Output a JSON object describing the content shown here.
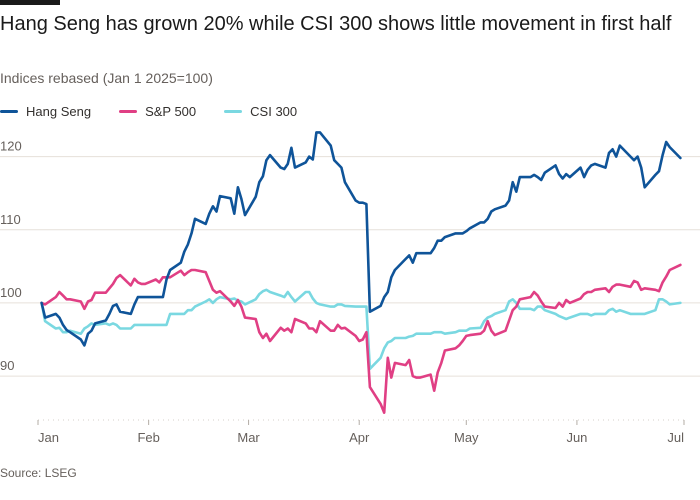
{
  "header": {
    "title": "Hang Seng has grown 20% while CSI 300 shows little movement in first half",
    "subtitle": "Indices rebased (Jan 1 2025=100)"
  },
  "footer": {
    "source": "Source: LSEG"
  },
  "chart_data": {
    "type": "line",
    "title": "Hang Seng has grown 20% while CSI 300 shows little movement in first half",
    "subtitle": "Indices rebased (Jan 1 2025=100)",
    "xlabel": "",
    "ylabel": "",
    "legend_position": "top-left",
    "grid": true,
    "ylim": [
      84,
      125
    ],
    "yticks": [
      90,
      100,
      110,
      120
    ],
    "xticks": [
      "Jan",
      "Feb",
      "Mar",
      "Apr",
      "May",
      "Jun",
      "Jul"
    ],
    "x": [
      "2025-01-02",
      "2025-01-03",
      "2025-01-06",
      "2025-01-07",
      "2025-01-08",
      "2025-01-09",
      "2025-01-10",
      "2025-01-13",
      "2025-01-14",
      "2025-01-15",
      "2025-01-16",
      "2025-01-17",
      "2025-01-20",
      "2025-01-21",
      "2025-01-22",
      "2025-01-23",
      "2025-01-24",
      "2025-01-27",
      "2025-01-28",
      "2025-01-29",
      "2025-01-30",
      "2025-01-31",
      "2025-02-03",
      "2025-02-04",
      "2025-02-05",
      "2025-02-06",
      "2025-02-07",
      "2025-02-10",
      "2025-02-11",
      "2025-02-12",
      "2025-02-13",
      "2025-02-14",
      "2025-02-17",
      "2025-02-18",
      "2025-02-19",
      "2025-02-20",
      "2025-02-21",
      "2025-02-24",
      "2025-02-25",
      "2025-02-26",
      "2025-02-27",
      "2025-02-28",
      "2025-03-03",
      "2025-03-04",
      "2025-03-05",
      "2025-03-06",
      "2025-03-07",
      "2025-03-10",
      "2025-03-11",
      "2025-03-12",
      "2025-03-13",
      "2025-03-14",
      "2025-03-17",
      "2025-03-18",
      "2025-03-19",
      "2025-03-20",
      "2025-03-21",
      "2025-03-24",
      "2025-03-25",
      "2025-03-26",
      "2025-03-27",
      "2025-03-28",
      "2025-03-31",
      "2025-04-01",
      "2025-04-02",
      "2025-04-03",
      "2025-04-04",
      "2025-04-07",
      "2025-04-08",
      "2025-04-09",
      "2025-04-10",
      "2025-04-11",
      "2025-04-14",
      "2025-04-15",
      "2025-04-16",
      "2025-04-17",
      "2025-04-18",
      "2025-04-21",
      "2025-04-22",
      "2025-04-23",
      "2025-04-24",
      "2025-04-25",
      "2025-04-28",
      "2025-04-29",
      "2025-04-30",
      "2025-05-01",
      "2025-05-02",
      "2025-05-05",
      "2025-05-06",
      "2025-05-07",
      "2025-05-08",
      "2025-05-09",
      "2025-05-12",
      "2025-05-13",
      "2025-05-14",
      "2025-05-15",
      "2025-05-16",
      "2025-05-19",
      "2025-05-20",
      "2025-05-21",
      "2025-05-22",
      "2025-05-23",
      "2025-05-26",
      "2025-05-27",
      "2025-05-28",
      "2025-05-29",
      "2025-05-30",
      "2025-06-02",
      "2025-06-03",
      "2025-06-04",
      "2025-06-05",
      "2025-06-06",
      "2025-06-09",
      "2025-06-10",
      "2025-06-11",
      "2025-06-12",
      "2025-06-13",
      "2025-06-16",
      "2025-06-17",
      "2025-06-18",
      "2025-06-19",
      "2025-06-20",
      "2025-06-23",
      "2025-06-24",
      "2025-06-25",
      "2025-06-26",
      "2025-06-27",
      "2025-06-30"
    ],
    "series": [
      {
        "name": "Hang Seng",
        "color": "#0f5499",
        "values": [
          100,
          98,
          98.5,
          98,
          97,
          96.3,
          96,
          95,
          94.2,
          95.8,
          96.2,
          97.2,
          97.6,
          98.5,
          99.6,
          99.8,
          98.8,
          98.5,
          99.8,
          100.8,
          100.8,
          100.8,
          100.8,
          100.8,
          100.8,
          103.2,
          104.5,
          105.5,
          107,
          108,
          109.5,
          111.5,
          110.8,
          112.2,
          113.2,
          112.5,
          114.6,
          114.3,
          112.2,
          115.8,
          114.2,
          112,
          114.5,
          116.5,
          117.3,
          119.5,
          120.2,
          118.5,
          118.3,
          119,
          121.2,
          118.5,
          119.2,
          120,
          119.6,
          123.3,
          123.3,
          121.5,
          119.5,
          119,
          118.5,
          116.5,
          114,
          113.7,
          113.7,
          113.5,
          98.8,
          99.6,
          100.8,
          101.5,
          103.5,
          104.5,
          106,
          106.5,
          105.5,
          106.8,
          106.8,
          106.8,
          107.5,
          108.5,
          108.5,
          109,
          109.5,
          109.5,
          109.5,
          109.8,
          110.2,
          111,
          111,
          111.5,
          112.5,
          112.8,
          113.3,
          114,
          116.5,
          115.2,
          117.2,
          117.2,
          117.5,
          117.2,
          116.8,
          117.8,
          118.8,
          117.6,
          117,
          117.6,
          117.2,
          118.5,
          117.2,
          118.2,
          118.8,
          119,
          118.5,
          120.5,
          121,
          120,
          121.5,
          120,
          119.5,
          120,
          118.5,
          115.8,
          117.5,
          118,
          120.2,
          122,
          121.3,
          119.8
        ]
      },
      {
        "name": "S&P 500",
        "color": "#e03f84",
        "values": [
          100,
          99.8,
          100.8,
          101.5,
          101,
          100.5,
          100.5,
          100.2,
          99.2,
          100.2,
          100.4,
          101.4,
          101.4,
          102,
          102.6,
          103.4,
          103.8,
          102.4,
          103.3,
          102.8,
          102.6,
          102.6,
          103.2,
          102.8,
          103.5,
          103.5,
          103.5,
          104.4,
          103.8,
          104.2,
          104.5,
          104.5,
          104.2,
          103,
          101.8,
          101.4,
          101.6,
          100.2,
          99.6,
          100.4,
          99.5,
          98,
          97.8,
          96,
          95.2,
          95.8,
          94.8,
          96.6,
          96.2,
          96.5,
          96,
          97.8,
          97.2,
          96.5,
          96.5,
          96,
          97.5,
          96.2,
          96.2,
          97,
          96.5,
          96.6,
          95.5,
          94.8,
          95,
          96,
          88.5,
          86.2,
          85,
          92.5,
          89.8,
          91.8,
          91.5,
          92.2,
          90,
          89.8,
          89.8,
          90.2,
          88,
          90.5,
          91.8,
          93.5,
          93.8,
          94.2,
          94.8,
          95.5,
          95.6,
          95.8,
          96.2,
          97.5,
          96.2,
          95.6,
          96.2,
          97.6,
          99,
          99.5,
          100.5,
          100.8,
          101.5,
          101,
          100.2,
          99.5,
          99.3,
          100,
          99.5,
          100.4,
          100,
          100.6,
          101.2,
          101.5,
          101.5,
          101.8,
          102,
          101.5,
          102.2,
          102.5,
          102.5,
          102.2,
          103,
          102.8,
          101.8,
          102,
          101.8,
          101.6,
          102.8,
          103.6,
          104.5,
          105.2
        ]
      },
      {
        "name": "CSI 300",
        "color": "#7ad8e1",
        "values": [
          100,
          97.5,
          96.5,
          96.6,
          96,
          96,
          96.2,
          95.8,
          96.5,
          96.8,
          97.2,
          97,
          97.2,
          97,
          97.2,
          97,
          96.5,
          96.5,
          97,
          97,
          97,
          97,
          97,
          97,
          97,
          97,
          98.5,
          98.5,
          98.5,
          99,
          99,
          99.5,
          100.2,
          100.5,
          100,
          100.5,
          100.8,
          100.5,
          100.6,
          100.3,
          100.2,
          99.8,
          100.5,
          101.2,
          101.6,
          101.8,
          101.5,
          101,
          100.8,
          101.5,
          100.8,
          100.2,
          101.5,
          101.5,
          100.6,
          100,
          99.8,
          99.5,
          99.5,
          99.8,
          99.8,
          99.6,
          99.5,
          99.5,
          99.5,
          99.5,
          91,
          92.5,
          93.8,
          94.6,
          94.8,
          95.2,
          95.2,
          95.4,
          95.5,
          95.8,
          95.8,
          95.8,
          96,
          96,
          96,
          95.8,
          96,
          96.2,
          96.2,
          96.2,
          96.5,
          96.6,
          97.5,
          98,
          98.2,
          98.5,
          99,
          100.2,
          100.5,
          100,
          99.2,
          99.2,
          99,
          99.5,
          99.5,
          99,
          98.5,
          98.2,
          98,
          97.8,
          98,
          98.5,
          98.5,
          98.5,
          98.3,
          98.5,
          98.5,
          99,
          99.2,
          98.8,
          99,
          98.5,
          98.5,
          98.5,
          98.5,
          98.5,
          99,
          100.5,
          100.5,
          100.2,
          99.8,
          100
        ]
      }
    ]
  }
}
